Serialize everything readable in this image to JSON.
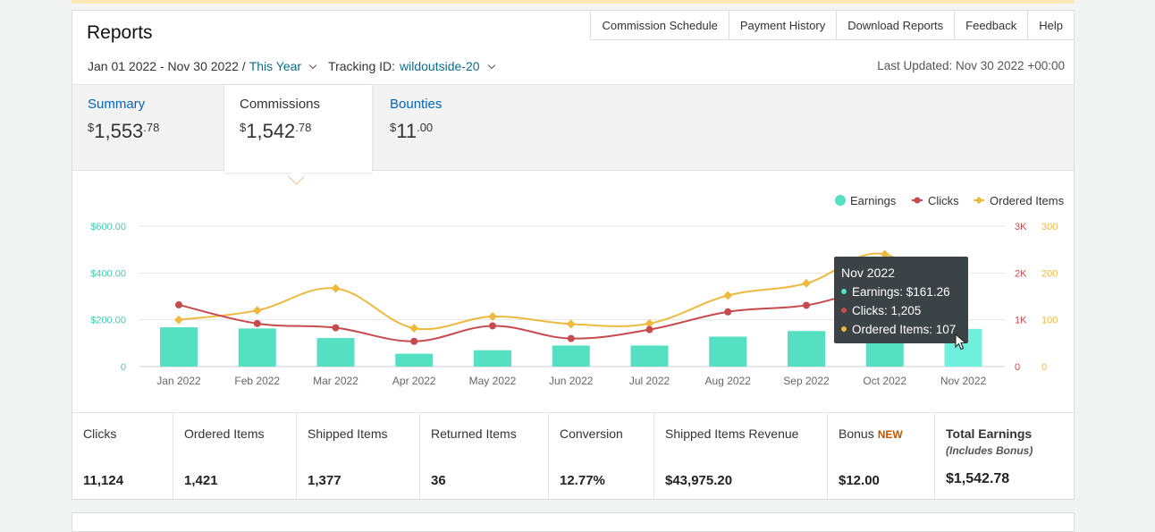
{
  "header": {
    "title": "Reports",
    "nav": [
      "Commission Schedule",
      "Payment History",
      "Download Reports",
      "Feedback",
      "Help"
    ],
    "date_range": "Jan 01 2022 - Nov 30 2022 /",
    "period": "This Year",
    "tracking_label": "Tracking ID:",
    "tracking_id": "wildoutside-20",
    "last_updated": "Last Updated: Nov 30 2022 +00:00"
  },
  "tabs": [
    {
      "label": "Summary",
      "currency": "$",
      "whole": "1,553",
      "cents": ".78"
    },
    {
      "label": "Commissions",
      "currency": "$",
      "whole": "1,542",
      "cents": ".78"
    },
    {
      "label": "Bounties",
      "currency": "$",
      "whole": "11",
      "cents": ".00"
    }
  ],
  "colors": {
    "earnings": "#55e0c2",
    "earnings_highlight": "#6ff0dc",
    "clicks": "#c74a4f",
    "ordered": "#edb93f",
    "tooltip_bg": "#3b4347"
  },
  "chart_data": {
    "type": "bar",
    "categories": [
      "Jan 2022",
      "Feb 2022",
      "Mar 2022",
      "Apr 2022",
      "May 2022",
      "Jun 2022",
      "Jul 2022",
      "Aug 2022",
      "Sep 2022",
      "Oct 2022",
      "Nov 2022"
    ],
    "series": [
      {
        "name": "Earnings",
        "type": "bar",
        "axis": "left",
        "values": [
          168,
          163,
          122,
          55,
          70,
          90,
          90,
          128,
          152,
          156,
          161.26
        ]
      },
      {
        "name": "Clicks",
        "type": "line",
        "axis": "right1",
        "values": [
          1320,
          920,
          830,
          540,
          870,
          600,
          790,
          1170,
          1310,
          1650,
          1205
        ]
      },
      {
        "name": "Ordered Items",
        "type": "line",
        "axis": "right2",
        "values": [
          100,
          120,
          167,
          82,
          107,
          91,
          92,
          152,
          178,
          240,
          107
        ]
      }
    ],
    "y_left_ticks": [
      "0",
      "$200.00",
      "$400.00",
      "$600.00"
    ],
    "y_right1_ticks": [
      "0",
      "1K",
      "2K",
      "3K"
    ],
    "y_right2_ticks": [
      "0",
      "100",
      "200",
      "300"
    ],
    "y_left_range": [
      0,
      600
    ],
    "y_right1_range": [
      0,
      3000
    ],
    "y_right2_range": [
      0,
      300
    ],
    "legend_position": "top-right",
    "grid": true,
    "highlight_index": 10
  },
  "tooltip": {
    "title": "Nov 2022",
    "earnings": "Earnings: $161.26",
    "clicks": "Clicks: 1,205",
    "ordered": "Ordered Items: 107"
  },
  "metrics": [
    {
      "label": "Clicks",
      "value": "11,124"
    },
    {
      "label": "Ordered Items",
      "value": "1,421"
    },
    {
      "label": "Shipped Items",
      "value": "1,377"
    },
    {
      "label": "Returned Items",
      "value": "36"
    },
    {
      "label": "Conversion",
      "value": "12.77%"
    },
    {
      "label": "Shipped Items Revenue",
      "value": "$43,975.20"
    },
    {
      "label": "Bonus",
      "badge": "NEW",
      "value": "$12.00"
    },
    {
      "label": "Total Earnings",
      "note": "(Includes Bonus)",
      "value": "$1,542.78"
    }
  ]
}
